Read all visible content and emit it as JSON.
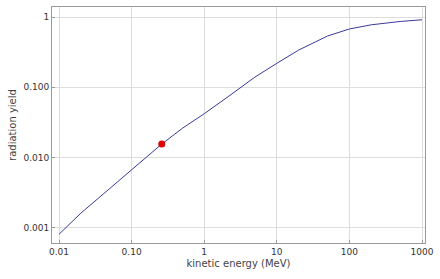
{
  "chart_data": {
    "type": "line",
    "x_label": "kinetic energy (MeV)",
    "y_label": "radiation yield",
    "log": true,
    "grid": true,
    "xlim": [
      0.008,
      1100
    ],
    "ylim": [
      0.0006,
      1.4
    ],
    "xticks": [
      0.01,
      {
        "value": 0.1,
        "label": "0.10"
      },
      1,
      10,
      100,
      1000
    ],
    "yticks": [
      0.001,
      {
        "value": 0.01,
        "label": "0.010"
      },
      {
        "value": 0.1,
        "label": "0.100"
      },
      1
    ],
    "series": [
      {
        "type": "line",
        "color": "#3a3a9a",
        "x": [
          0.01,
          0.02,
          0.05,
          0.1,
          0.2,
          0.26,
          0.5,
          1,
          2,
          5,
          10,
          20,
          50,
          100,
          200,
          500,
          1000
        ],
        "values": [
          0.0008,
          0.0016,
          0.0036,
          0.0066,
          0.0122,
          0.0155,
          0.026,
          0.042,
          0.07,
          0.14,
          0.22,
          0.34,
          0.54,
          0.68,
          0.78,
          0.87,
          0.92
        ]
      },
      {
        "type": "scatter",
        "color": "#e00000",
        "marker": "circle",
        "x": [
          0.26
        ],
        "values": [
          0.0155
        ]
      }
    ]
  }
}
